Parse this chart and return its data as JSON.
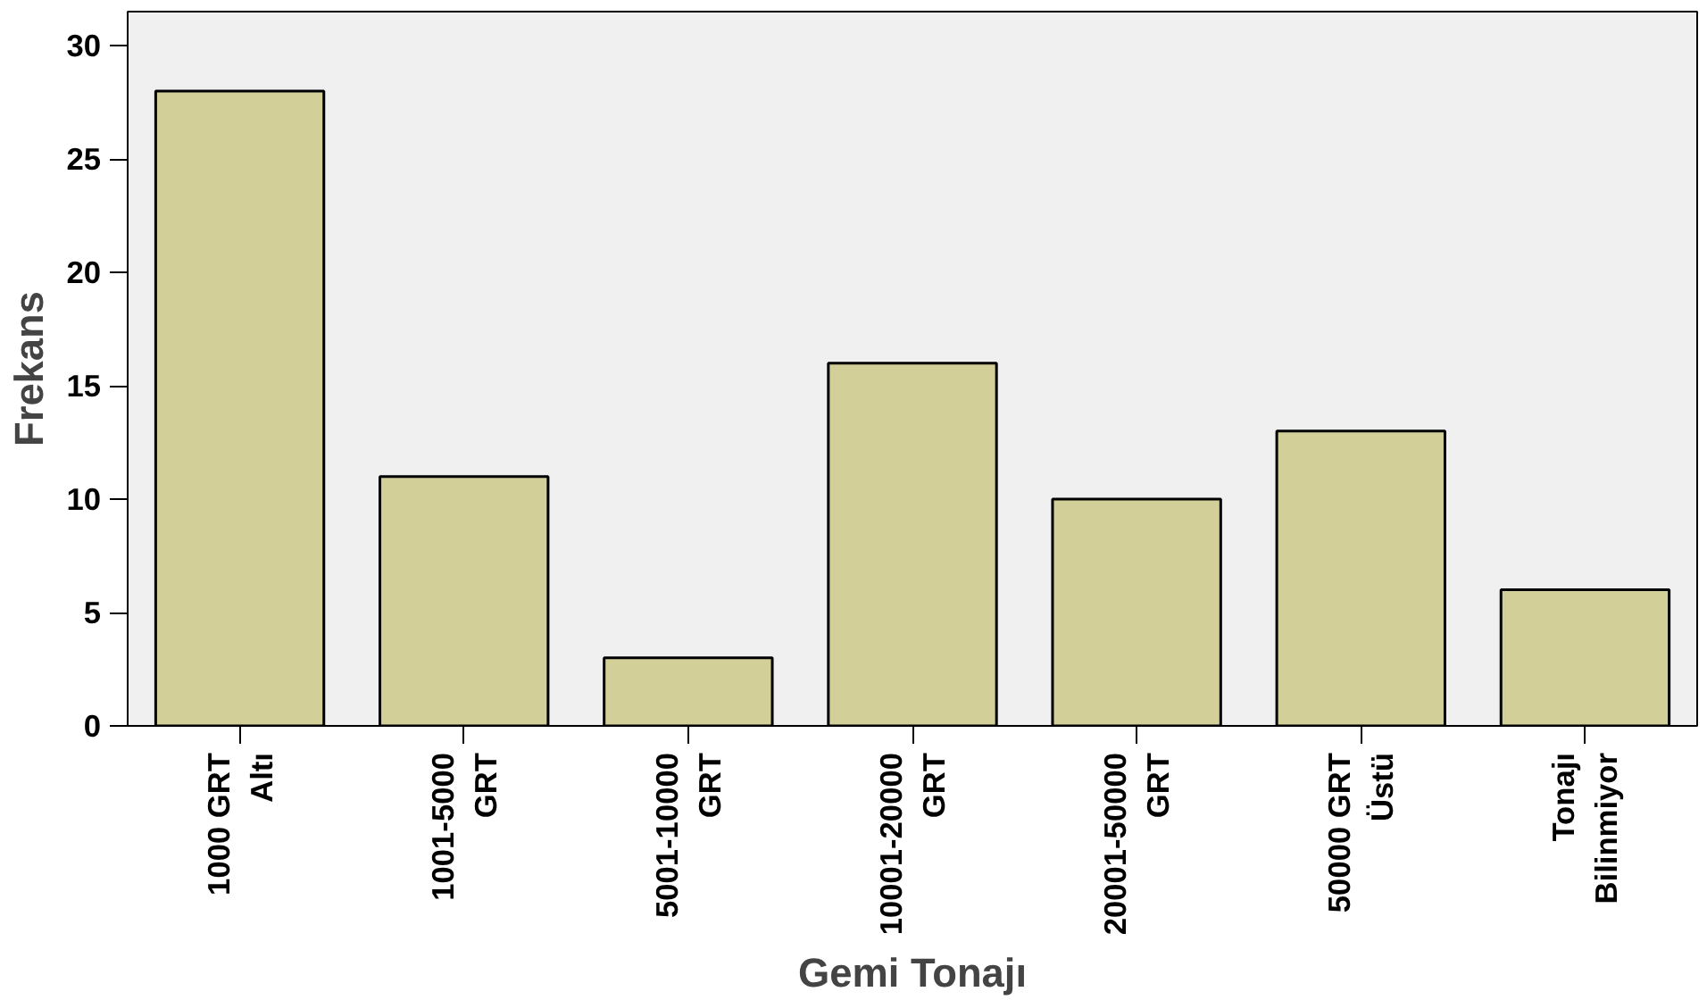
{
  "chart_data": {
    "type": "bar",
    "xlabel": "Gemi Tonajı",
    "ylabel": "Frekans",
    "categories": [
      "1000 GRT\nAltı",
      "1001-5000\nGRT",
      "5001-10000\nGRT",
      "10001-20000\nGRT",
      "20001-50000\nGRT",
      "50000 GRT\nÜstü",
      "Tonajı\nBilinmiyor"
    ],
    "values": [
      28,
      11,
      3,
      16,
      10,
      13,
      6
    ],
    "color": "#d3cf98",
    "ylim": [
      0,
      31.5
    ],
    "yticks": [
      0,
      5,
      10,
      15,
      20,
      25,
      30
    ],
    "grid": false
  }
}
